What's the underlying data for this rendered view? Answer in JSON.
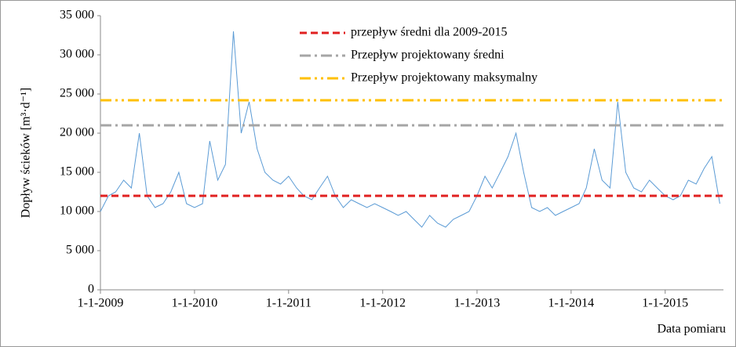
{
  "chart_data": {
    "type": "line",
    "y_label": "Dopływ ścieków [m³·d⁻¹]",
    "x_label": "Data pomiaru",
    "ylim": [
      0,
      35000
    ],
    "yticks": [
      0,
      {
        "value": 5000,
        "label": "5 000"
      },
      {
        "value": 10000,
        "label": "10 000"
      },
      {
        "value": 15000,
        "label": "15 000"
      },
      {
        "value": 20000,
        "label": "20 000"
      },
      {
        "value": 25000,
        "label": "25 000"
      },
      {
        "value": 30000,
        "label": "30 000"
      },
      {
        "value": 35000,
        "label": "35 000"
      }
    ],
    "xlim": [
      "1-1-2009",
      "15-8-2015"
    ],
    "xticks": [
      "1-1-2009",
      "1-1-2010",
      "1-1-2011",
      "1-1-2012",
      "1-1-2013",
      "1-1-2014",
      "1-1-2015"
    ],
    "legend": "top",
    "series": [
      {
        "name": "Dopływ",
        "color": "#5b9bd5",
        "style": "solid",
        "in_legend": false,
        "x": [
          "1-1-2009",
          "1-2-2009",
          "1-3-2009",
          "1-4-2009",
          "1-5-2009",
          "1-6-2009",
          "1-7-2009",
          "1-8-2009",
          "1-9-2009",
          "1-10-2009",
          "1-11-2009",
          "1-12-2009",
          "1-1-2010",
          "1-2-2010",
          "1-3-2010",
          "1-4-2010",
          "1-5-2010",
          "1-6-2010",
          "1-7-2010",
          "1-8-2010",
          "1-9-2010",
          "1-10-2010",
          "1-11-2010",
          "1-12-2010",
          "1-1-2011",
          "1-2-2011",
          "1-3-2011",
          "1-4-2011",
          "1-5-2011",
          "1-6-2011",
          "1-7-2011",
          "1-8-2011",
          "1-9-2011",
          "1-10-2011",
          "1-11-2011",
          "1-12-2011",
          "1-1-2012",
          "1-2-2012",
          "1-3-2012",
          "1-4-2012",
          "1-5-2012",
          "1-6-2012",
          "1-7-2012",
          "1-8-2012",
          "1-9-2012",
          "1-10-2012",
          "1-11-2012",
          "1-12-2012",
          "1-1-2013",
          "1-2-2013",
          "1-3-2013",
          "1-4-2013",
          "1-5-2013",
          "1-6-2013",
          "1-7-2013",
          "1-8-2013",
          "1-9-2013",
          "1-10-2013",
          "1-11-2013",
          "1-12-2013",
          "1-1-2014",
          "1-2-2014",
          "1-3-2014",
          "1-4-2014",
          "1-5-2014",
          "1-6-2014",
          "1-7-2014",
          "1-8-2014",
          "1-9-2014",
          "1-10-2014",
          "1-11-2014",
          "1-12-2014",
          "1-1-2015",
          "1-2-2015",
          "1-3-2015",
          "1-4-2015",
          "1-5-2015",
          "1-6-2015",
          "1-7-2015",
          "1-8-2015"
        ],
        "values": [
          10000,
          12000,
          12500,
          14000,
          13000,
          20000,
          12000,
          10500,
          11000,
          12500,
          15000,
          11000,
          10500,
          11000,
          19000,
          14000,
          16000,
          33000,
          20000,
          24000,
          18000,
          15000,
          14000,
          13500,
          14500,
          13000,
          12000,
          11500,
          13000,
          14500,
          12000,
          10500,
          11500,
          11000,
          10500,
          11000,
          10500,
          10000,
          9500,
          10000,
          9000,
          8000,
          9500,
          8500,
          8000,
          9000,
          9500,
          10000,
          12000,
          14500,
          13000,
          15000,
          17000,
          20000,
          15000,
          10500,
          10000,
          10500,
          9500,
          10000,
          10500,
          11000,
          13000,
          18000,
          14000,
          13000,
          24000,
          15000,
          13000,
          12500,
          14000,
          13000,
          12000,
          11500,
          12000,
          14000,
          13500,
          15500,
          17000,
          11000
        ]
      },
      {
        "name": "przepływ średni dla 2009-2015",
        "color": "#e02020",
        "style": "dash",
        "x": [
          "1-1-2009",
          "15-8-2015"
        ],
        "values": [
          12000,
          12000
        ]
      },
      {
        "name": "Przepływ projektowany średni",
        "color": "#a5a5a5",
        "style": "dashdot",
        "x": [
          "1-1-2009",
          "15-8-2015"
        ],
        "values": [
          21000,
          21000
        ]
      },
      {
        "name": "Przepływ projektowany maksymalny",
        "color": "#ffc000",
        "style": "dashdotdot",
        "x": [
          "1-1-2009",
          "15-8-2015"
        ],
        "values": [
          24200,
          24200
        ]
      }
    ]
  }
}
